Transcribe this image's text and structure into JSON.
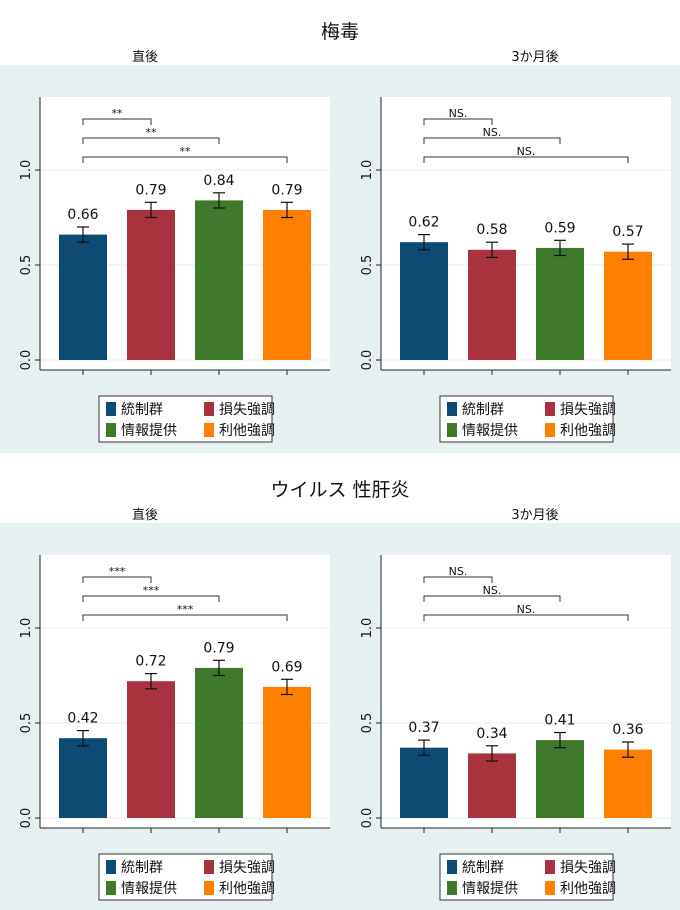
{
  "colors": {
    "panel_bg": "#e6f0f0",
    "plot_bg": "#ffffff",
    "series": [
      "#0d4a74",
      "#a8323e",
      "#3f7a2c",
      "#ff7f00"
    ]
  },
  "legend": {
    "labels": [
      "統制群",
      "損失強調",
      "情報提供",
      "利他強調"
    ]
  },
  "sections": [
    {
      "title": "梅毒",
      "panels": [
        {
          "subtitle": "直後"
        },
        {
          "subtitle": "3か月後"
        }
      ]
    },
    {
      "title": "ウイルス 性肝炎",
      "panels": [
        {
          "subtitle": "直後"
        },
        {
          "subtitle": "3か月後"
        }
      ]
    }
  ],
  "chart_data": [
    {
      "type": "bar",
      "section": "梅毒",
      "title": "直後",
      "categories": [
        "統制群",
        "損失強調",
        "情報提供",
        "利他強調"
      ],
      "values": [
        0.66,
        0.79,
        0.84,
        0.79
      ],
      "value_labels": [
        "0.66",
        "0.79",
        "0.84",
        "0.79"
      ],
      "error_low": [
        0.62,
        0.75,
        0.8,
        0.75
      ],
      "error_high": [
        0.7,
        0.83,
        0.88,
        0.83
      ],
      "yticks": [
        0.0,
        0.5,
        1.0
      ],
      "ytick_labels": [
        "0.0",
        "0.5",
        "1.0"
      ],
      "ylim": [
        0,
        1.35
      ],
      "significance": [
        {
          "to": 1,
          "label": "**"
        },
        {
          "to": 2,
          "label": "**"
        },
        {
          "to": 3,
          "label": "**"
        }
      ]
    },
    {
      "type": "bar",
      "section": "梅毒",
      "title": "3か月後",
      "categories": [
        "統制群",
        "損失強調",
        "情報提供",
        "利他強調"
      ],
      "values": [
        0.62,
        0.58,
        0.59,
        0.57
      ],
      "value_labels": [
        "0.62",
        "0.58",
        "0.59",
        "0.57"
      ],
      "error_low": [
        0.58,
        0.54,
        0.55,
        0.53
      ],
      "error_high": [
        0.66,
        0.62,
        0.63,
        0.61
      ],
      "yticks": [
        0.0,
        0.5,
        1.0
      ],
      "ytick_labels": [
        "0.0",
        "0.5",
        "1.0"
      ],
      "ylim": [
        0,
        1.35
      ],
      "significance": [
        {
          "to": 1,
          "label": "NS."
        },
        {
          "to": 2,
          "label": "NS."
        },
        {
          "to": 3,
          "label": "NS."
        }
      ]
    },
    {
      "type": "bar",
      "section": "ウイルス 性肝炎",
      "title": "直後",
      "categories": [
        "統制群",
        "損失強調",
        "情報提供",
        "利他強調"
      ],
      "values": [
        0.42,
        0.72,
        0.79,
        0.69
      ],
      "value_labels": [
        "0.42",
        "0.72",
        "0.79",
        "0.69"
      ],
      "error_low": [
        0.38,
        0.68,
        0.75,
        0.65
      ],
      "error_high": [
        0.46,
        0.76,
        0.83,
        0.73
      ],
      "yticks": [
        0.0,
        0.5,
        1.0
      ],
      "ytick_labels": [
        "0.0",
        "0.5",
        "1.0"
      ],
      "ylim": [
        0,
        1.35
      ],
      "significance": [
        {
          "to": 1,
          "label": "***"
        },
        {
          "to": 2,
          "label": "***"
        },
        {
          "to": 3,
          "label": "***"
        }
      ]
    },
    {
      "type": "bar",
      "section": "ウイルス 性肝炎",
      "title": "3か月後",
      "categories": [
        "統制群",
        "損失強調",
        "情報提供",
        "利他強調"
      ],
      "values": [
        0.37,
        0.34,
        0.41,
        0.36
      ],
      "value_labels": [
        "0.37",
        "0.34",
        "0.41",
        "0.36"
      ],
      "error_low": [
        0.33,
        0.3,
        0.37,
        0.32
      ],
      "error_high": [
        0.41,
        0.38,
        0.45,
        0.4
      ],
      "yticks": [
        0.0,
        0.5,
        1.0
      ],
      "ytick_labels": [
        "0.0",
        "0.5",
        "1.0"
      ],
      "ylim": [
        0,
        1.35
      ],
      "significance": [
        {
          "to": 1,
          "label": "NS."
        },
        {
          "to": 2,
          "label": "NS."
        },
        {
          "to": 3,
          "label": "NS."
        }
      ]
    }
  ]
}
